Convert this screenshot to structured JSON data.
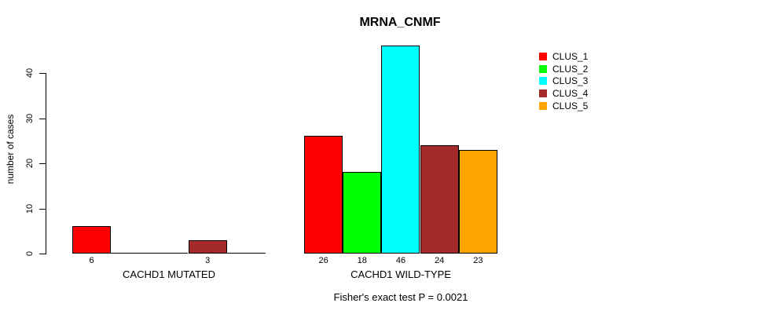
{
  "title": "MRNA_CNMF",
  "ylabel": "number of cases",
  "footer": "Fisher's exact test P = 0.0021",
  "legend": {
    "items": [
      {
        "label": "CLUS_1",
        "color": "#ff0000"
      },
      {
        "label": "CLUS_2",
        "color": "#00ff00"
      },
      {
        "label": "CLUS_3",
        "color": "#00ffff"
      },
      {
        "label": "CLUS_4",
        "color": "#a52a2a"
      },
      {
        "label": "CLUS_5",
        "color": "#ffa500"
      }
    ]
  },
  "chart_data": {
    "type": "bar",
    "title": "MRNA_CNMF",
    "xlabel": "",
    "ylabel": "number of cases",
    "ylim": [
      0,
      46
    ],
    "yticks": [
      0,
      10,
      20,
      30,
      40
    ],
    "grid": false,
    "legend_position": "top-right",
    "clusters": [
      "CLUS_1",
      "CLUS_2",
      "CLUS_3",
      "CLUS_4",
      "CLUS_5"
    ],
    "colors": [
      "#ff0000",
      "#00ff00",
      "#00ffff",
      "#a52a2a",
      "#ffa500"
    ],
    "groups": [
      {
        "label": "CACHD1 MUTATED",
        "values": [
          6,
          0,
          0,
          3,
          0
        ]
      },
      {
        "label": "CACHD1 WILD-TYPE",
        "values": [
          26,
          18,
          46,
          24,
          23
        ]
      }
    ],
    "zero_value_labels_hidden": true,
    "annotation": "Fisher's exact test P = 0.0021"
  }
}
